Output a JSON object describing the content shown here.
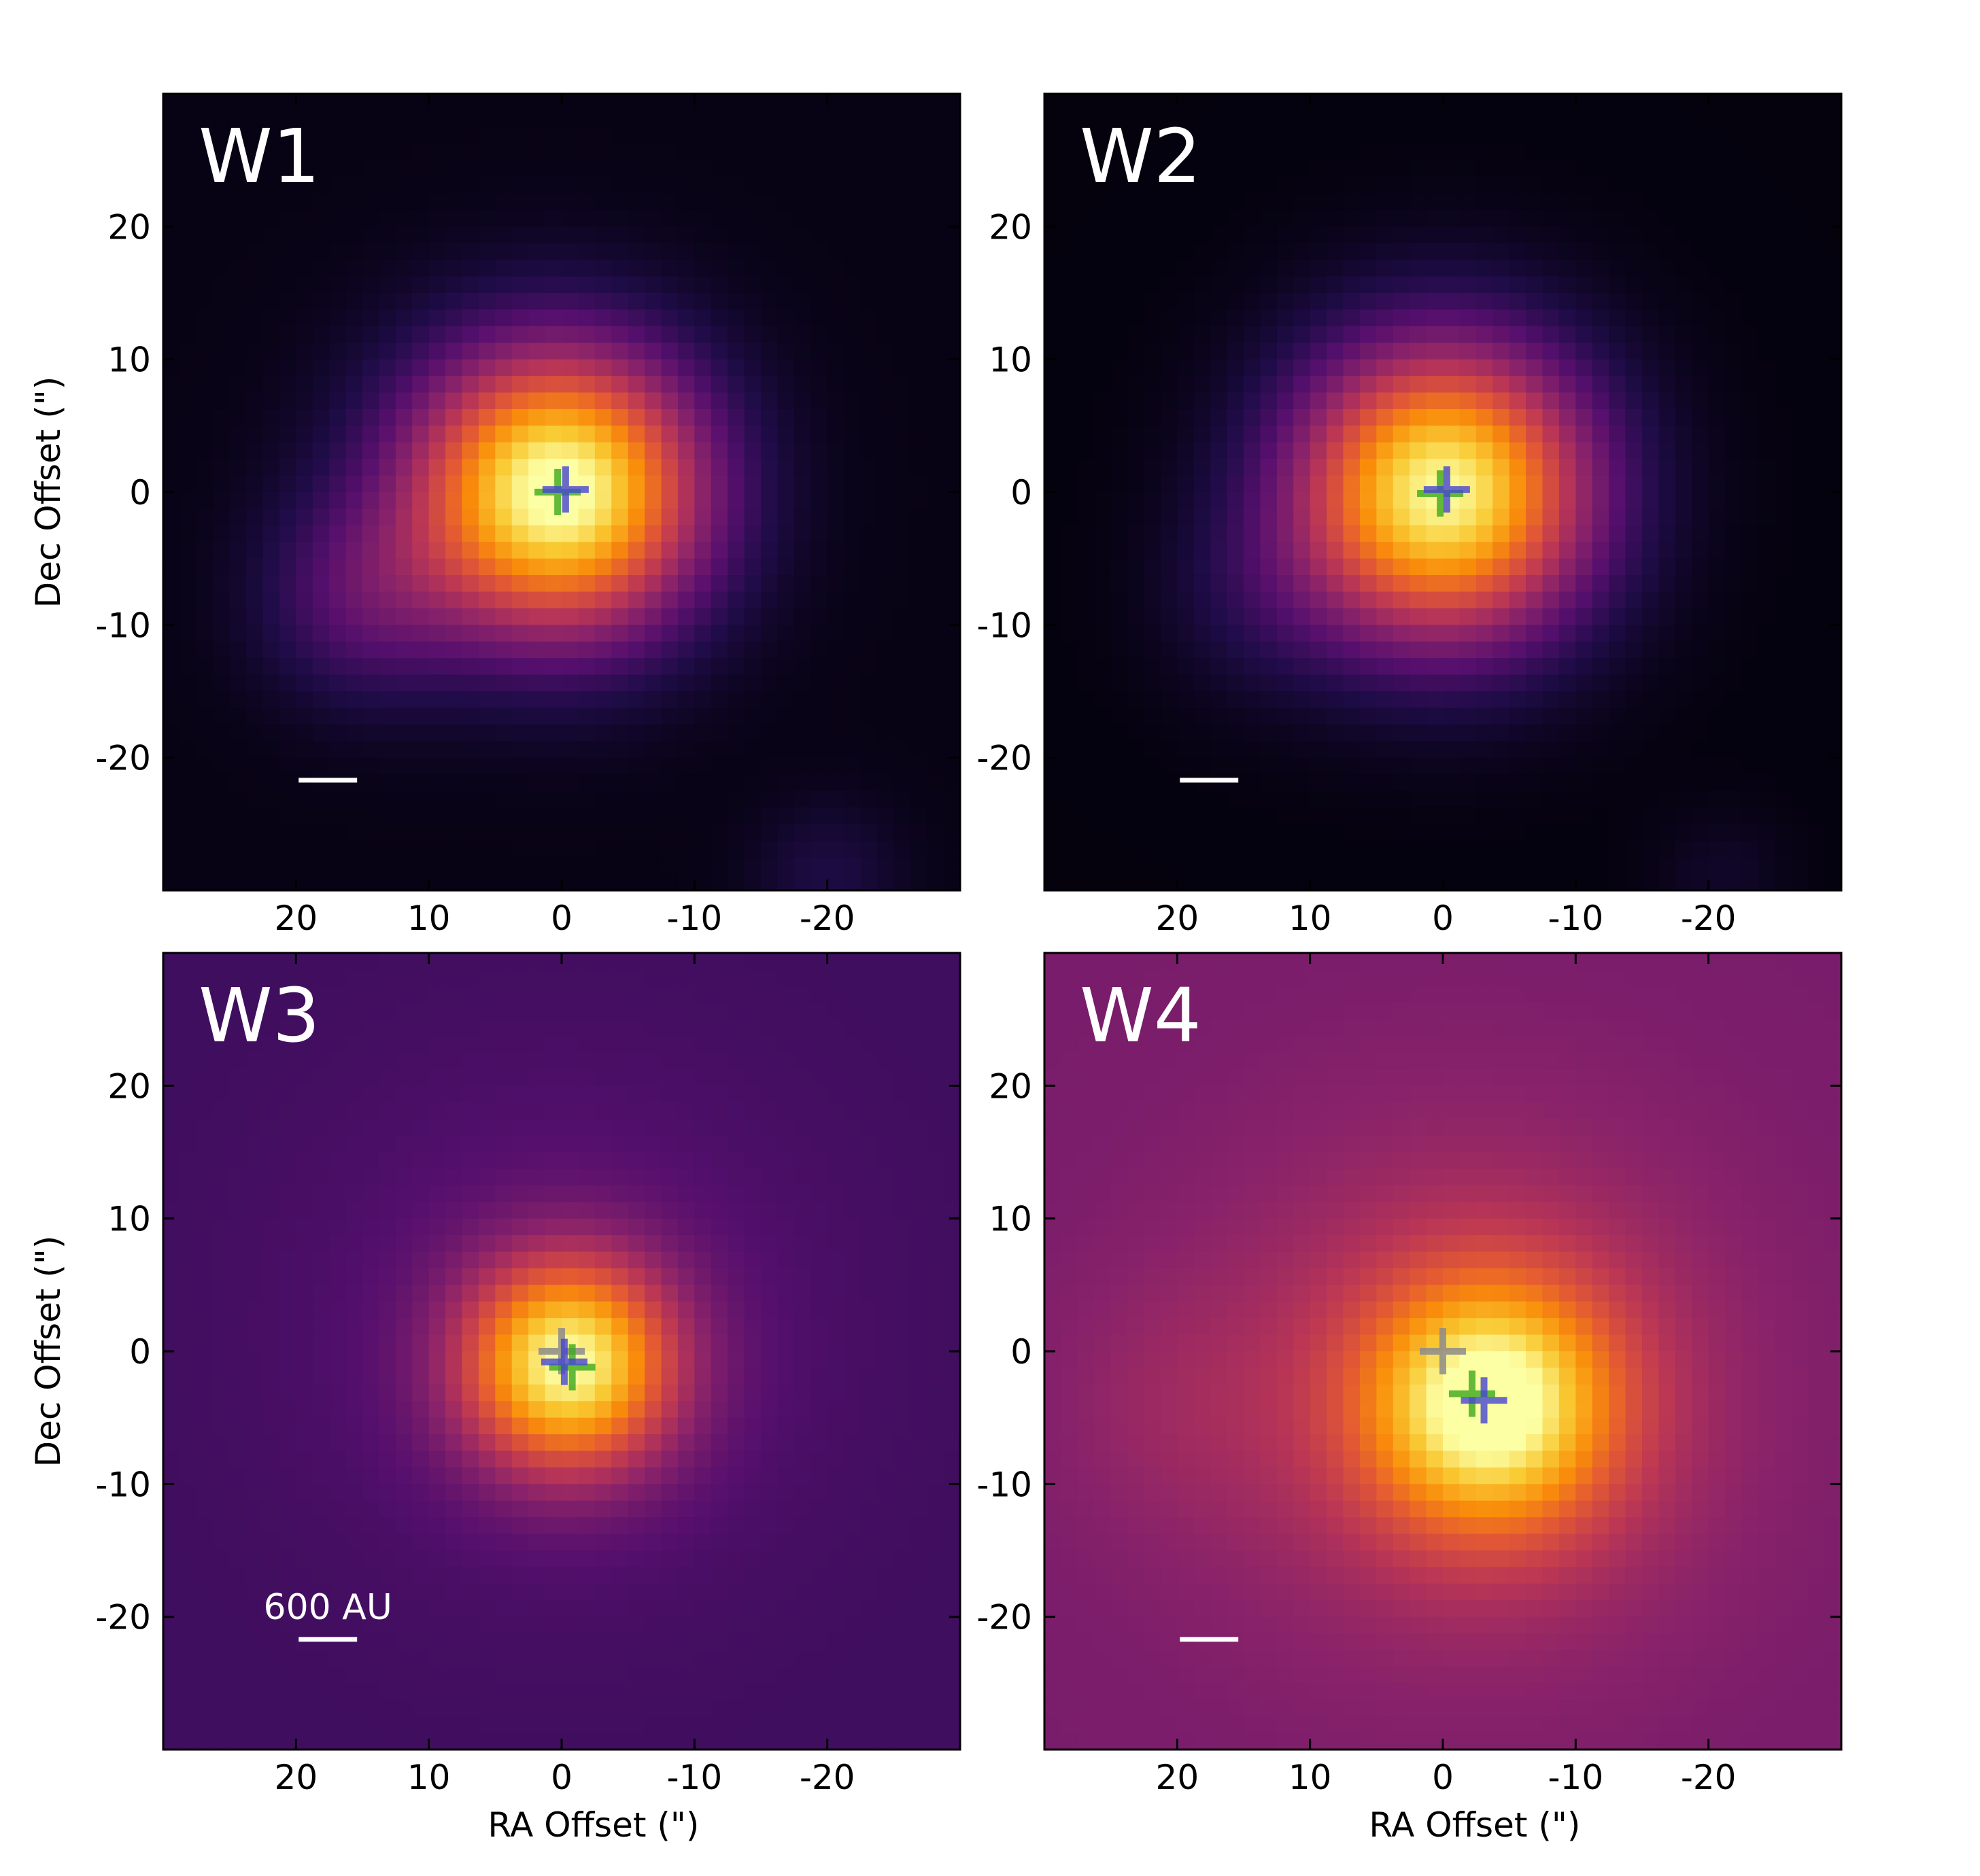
{
  "figure": {
    "x_axis_label": "RA Offset (\")",
    "y_axis_label": "Dec Offset (\")",
    "x_ticks": [
      "20",
      "10",
      "0",
      "-10",
      "-20"
    ],
    "y_ticks": [
      "20",
      "10",
      "0",
      "-10",
      "-20"
    ],
    "scale_bar_label": "600 AU"
  },
  "colors": {
    "colormap": "inferno",
    "cross_green": "#3caa1e",
    "cross_blue": "#4646d2",
    "cross_gray": "#8c8c8c",
    "scale_bar": "#ffffff"
  },
  "chart_data": [
    {
      "type": "heatmap",
      "title": "W1",
      "xlabel": "",
      "ylabel": "Dec Offset (\")",
      "xlim": [
        30,
        -30
      ],
      "ylim": [
        -30,
        30
      ],
      "colormap": "inferno",
      "background_level": 0.03,
      "sources": [
        {
          "ra": 0,
          "dec": 0,
          "peak": 0.97,
          "sigma": 7.5
        },
        {
          "ra": 15,
          "dec": -8,
          "peak": 0.2,
          "sigma": 5.5
        },
        {
          "ra": 8,
          "dec": 2,
          "peak": 0.06,
          "sigma": 8
        },
        {
          "ra": -20,
          "dec": -29,
          "peak": 0.09,
          "sigma": 4
        }
      ],
      "crosses": [
        {
          "color": "green",
          "ra": 0.3,
          "dec": 0
        },
        {
          "color": "blue",
          "ra": -0.3,
          "dec": 0.2
        }
      ],
      "scale_bar_label_shown": false
    },
    {
      "type": "heatmap",
      "title": "W2",
      "xlabel": "",
      "ylabel": "",
      "xlim": [
        30,
        -30
      ],
      "ylim": [
        -30,
        30
      ],
      "colormap": "inferno",
      "background_level": 0.02,
      "sources": [
        {
          "ra": 0,
          "dec": 0,
          "peak": 0.97,
          "sigma": 7.8
        },
        {
          "ra": 14,
          "dec": -8,
          "peak": 0.08,
          "sigma": 5.5
        },
        {
          "ra": -21,
          "dec": -29,
          "peak": 0.05,
          "sigma": 3.5
        }
      ],
      "crosses": [
        {
          "color": "green",
          "ra": 0.2,
          "dec": -0.1
        },
        {
          "color": "blue",
          "ra": -0.3,
          "dec": 0.2
        }
      ],
      "scale_bar_label_shown": false
    },
    {
      "type": "heatmap",
      "title": "W3",
      "xlabel": "RA Offset (\")",
      "ylabel": "Dec Offset (\")",
      "xlim": [
        30,
        -30
      ],
      "ylim": [
        -30,
        30
      ],
      "colormap": "inferno",
      "background_level": 0.2,
      "sources": [
        {
          "ra": -0.5,
          "dec": -1,
          "peak": 0.74,
          "sigma": 5.6
        },
        {
          "ra": 0,
          "dec": 2,
          "peak": 0.07,
          "sigma": 14
        }
      ],
      "crosses": [
        {
          "color": "gray",
          "ra": 0,
          "dec": 0
        },
        {
          "color": "green",
          "ra": -0.8,
          "dec": -1.2
        },
        {
          "color": "blue",
          "ra": -0.2,
          "dec": -0.8
        }
      ],
      "scale_bar_label_shown": true
    },
    {
      "type": "heatmap",
      "title": "W4",
      "xlabel": "RA Offset (\")",
      "ylabel": "",
      "xlim": [
        30,
        -30
      ],
      "ylim": [
        -30,
        30
      ],
      "colormap": "inferno",
      "background_level": 0.34,
      "sources": [
        {
          "ra": -3.5,
          "dec": -4,
          "peak": 0.6,
          "sigma": 6.5
        },
        {
          "ra": -2,
          "dec": -3,
          "peak": 0.16,
          "sigma": 14
        },
        {
          "ra": 20,
          "dec": -4,
          "peak": 0.05,
          "sigma": 7
        }
      ],
      "crosses": [
        {
          "color": "gray",
          "ra": 0,
          "dec": 0
        },
        {
          "color": "green",
          "ra": -2.2,
          "dec": -3.2
        },
        {
          "color": "blue",
          "ra": -3.1,
          "dec": -3.7
        }
      ],
      "scale_bar_label_shown": false
    }
  ]
}
